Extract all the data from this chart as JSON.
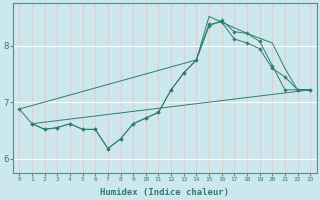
{
  "xlabel": "Humidex (Indice chaleur)",
  "bg_color": "#cce8ee",
  "grid_color": "#ffffff",
  "line_color": "#2e7d6e",
  "x_ticks": [
    0,
    1,
    2,
    3,
    4,
    5,
    6,
    7,
    8,
    9,
    10,
    11,
    12,
    13,
    14,
    15,
    16,
    17,
    18,
    19,
    20,
    21,
    22,
    23
  ],
  "y_ticks": [
    6,
    7,
    8
  ],
  "xlim": [
    -0.5,
    23.5
  ],
  "ylim": [
    5.75,
    8.75
  ],
  "series": [
    {
      "x": [
        0,
        1,
        2,
        3,
        4,
        5,
        6,
        7,
        8,
        9,
        10,
        11,
        12,
        13,
        14,
        15,
        16,
        17,
        18,
        19,
        20,
        21,
        22,
        23
      ],
      "y": [
        6.88,
        6.62,
        6.52,
        6.55,
        6.62,
        6.52,
        6.52,
        6.18,
        6.35,
        6.62,
        6.72,
        6.82,
        7.22,
        7.52,
        7.75,
        8.35,
        8.45,
        8.25,
        8.22,
        8.08,
        7.65,
        7.22,
        7.22,
        7.22
      ],
      "markers": true
    },
    {
      "x": [
        1,
        2,
        3,
        4,
        5,
        6,
        7,
        8,
        9,
        10,
        11,
        12,
        13,
        14,
        15,
        16,
        17,
        18,
        19,
        20,
        21,
        22,
        23
      ],
      "y": [
        6.62,
        6.52,
        6.55,
        6.62,
        6.52,
        6.52,
        6.18,
        6.35,
        6.62,
        6.72,
        6.82,
        7.22,
        7.52,
        7.75,
        8.38,
        8.42,
        8.12,
        8.05,
        7.95,
        7.6,
        7.45,
        7.22,
        7.22
      ],
      "markers": true
    },
    {
      "x": [
        1,
        23
      ],
      "y": [
        6.62,
        7.22
      ],
      "markers": false
    },
    {
      "x": [
        0,
        14,
        15,
        16,
        18,
        20,
        21,
        22,
        23
      ],
      "y": [
        6.88,
        7.75,
        8.52,
        8.42,
        8.22,
        8.05,
        7.6,
        7.22,
        7.22
      ],
      "markers": false
    }
  ]
}
